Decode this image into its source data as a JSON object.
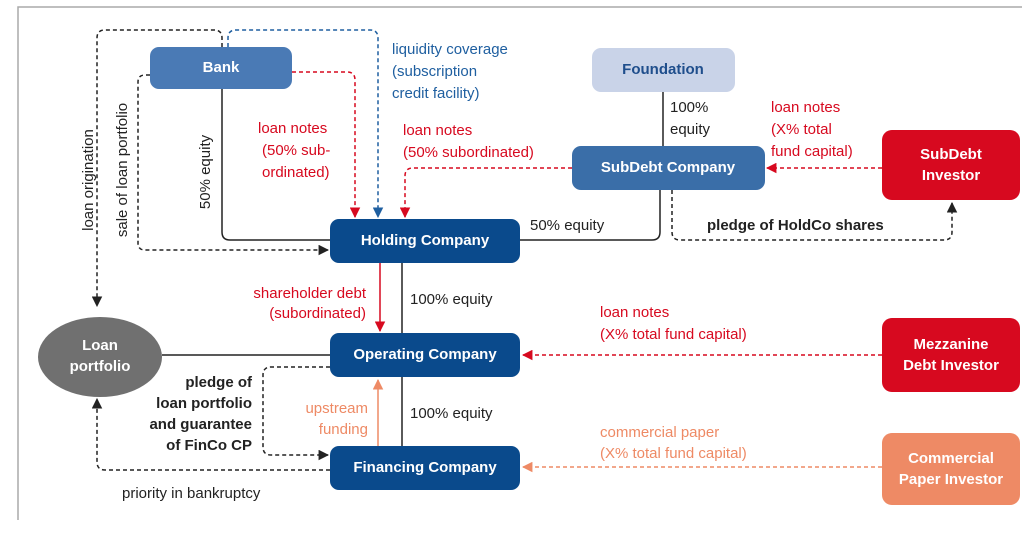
{
  "nodes": [
    {
      "id": "bank",
      "lines": [
        "Bank"
      ]
    },
    {
      "id": "foundation",
      "lines": [
        "Foundation"
      ]
    },
    {
      "id": "subdebt-company",
      "lines": [
        "SubDebt Company"
      ]
    },
    {
      "id": "holding-company",
      "lines": [
        "Holding Company"
      ]
    },
    {
      "id": "operating-company",
      "lines": [
        "Operating Company"
      ]
    },
    {
      "id": "financing-company",
      "lines": [
        "Financing Company"
      ]
    },
    {
      "id": "loan-portfolio",
      "lines": [
        "Loan",
        "portfolio"
      ]
    },
    {
      "id": "subdebt-investor",
      "lines": [
        "SubDebt",
        "Investor"
      ]
    },
    {
      "id": "mezzanine-investor",
      "lines": [
        "Mezzanine",
        "Debt Investor"
      ]
    },
    {
      "id": "cp-investor",
      "lines": [
        "Commercial",
        "Paper Investor"
      ]
    }
  ],
  "labels": [
    {
      "lines": [
        "liquidity coverage",
        "(subscription",
        "credit facility)"
      ]
    },
    {
      "lines": [
        "loan origination"
      ]
    },
    {
      "lines": [
        "sale of loan portfolio"
      ]
    },
    {
      "lines": [
        "50% equity"
      ]
    },
    {
      "lines": [
        "loan notes",
        "(50% sub-",
        "ordinated)"
      ]
    },
    {
      "lines": [
        "loan notes",
        "(50% subordinated)"
      ]
    },
    {
      "lines": [
        "100%",
        "equity"
      ]
    },
    {
      "lines": [
        "loan notes",
        "(X% total",
        "fund capital)"
      ]
    },
    {
      "lines": [
        "50% equity"
      ]
    },
    {
      "lines": [
        "pledge of HoldCo shares"
      ]
    },
    {
      "lines": [
        "shareholder debt",
        "(subordinated)"
      ]
    },
    {
      "lines": [
        "100% equity"
      ]
    },
    {
      "lines": [
        "loan notes",
        "(X% total fund capital)"
      ]
    },
    {
      "lines": [
        "pledge of",
        "loan portfolio",
        "and guarantee",
        "of FinCo CP"
      ]
    },
    {
      "lines": [
        "upstream",
        "funding"
      ]
    },
    {
      "lines": [
        "100% equity"
      ]
    },
    {
      "lines": [
        "commercial paper",
        "(X% total fund capital)"
      ]
    },
    {
      "lines": [
        "priority in bankruptcy"
      ]
    }
  ]
}
